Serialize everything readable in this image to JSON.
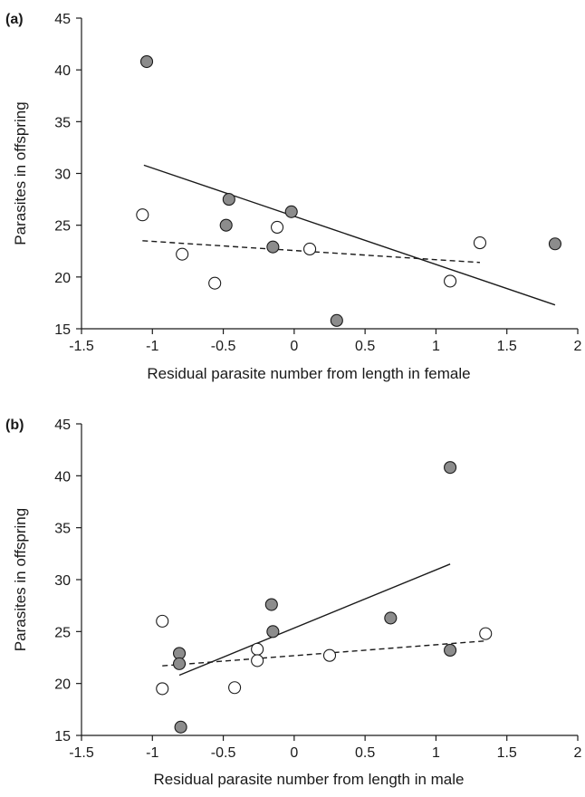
{
  "chart_data": [
    {
      "type": "scatter",
      "panel_label": "(a)",
      "xlabel": "Residual parasite number from length in female",
      "ylabel": "Parasites in offspring",
      "xlim": [
        -1.5,
        2
      ],
      "ylim": [
        15,
        45
      ],
      "xticks": [
        -1.5,
        -1,
        -0.5,
        0,
        0.5,
        1,
        1.5,
        2
      ],
      "yticks": [
        15,
        20,
        25,
        30,
        35,
        40,
        45
      ],
      "x_tick_labels": [
        "-1.5",
        "-1",
        "-0.5",
        "0",
        "0.5",
        "1",
        "1.5",
        "2"
      ],
      "y_tick_labels": [
        "15",
        "20",
        "25",
        "30",
        "35",
        "40",
        "45"
      ],
      "grid": false,
      "series": [
        {
          "marker": "filled-circle",
          "color": "#8c8c8c",
          "points": [
            [
              -1.04,
              40.8
            ],
            [
              -0.46,
              27.5
            ],
            [
              -0.48,
              25.0
            ],
            [
              -0.02,
              26.3
            ],
            [
              -0.15,
              22.9
            ],
            [
              0.3,
              15.8
            ],
            [
              1.84,
              23.2
            ]
          ],
          "fit": {
            "style": "solid",
            "x": [
              -1.06,
              1.84
            ],
            "y": [
              30.8,
              17.3
            ]
          }
        },
        {
          "marker": "open-circle",
          "color": "#ffffff",
          "points": [
            [
              -1.07,
              26.0
            ],
            [
              -0.79,
              22.2
            ],
            [
              -0.56,
              19.4
            ],
            [
              -0.12,
              24.8
            ],
            [
              0.11,
              22.7
            ],
            [
              1.1,
              19.6
            ],
            [
              1.31,
              23.3
            ]
          ],
          "fit": {
            "style": "dashed",
            "x": [
              -1.07,
              1.31
            ],
            "y": [
              23.5,
              21.4
            ]
          }
        }
      ]
    },
    {
      "type": "scatter",
      "panel_label": "(b)",
      "xlabel": "Residual parasite number from length in male",
      "ylabel": "Parasites in offspring",
      "xlim": [
        -1.5,
        2
      ],
      "ylim": [
        15,
        45
      ],
      "xticks": [
        -1.5,
        -1,
        -0.5,
        0,
        0.5,
        1,
        1.5,
        2
      ],
      "yticks": [
        15,
        20,
        25,
        30,
        35,
        40,
        45
      ],
      "x_tick_labels": [
        "-1.5",
        "-1",
        "-0.5",
        "0",
        "0.5",
        "1",
        "1.5",
        "2"
      ],
      "y_tick_labels": [
        "15",
        "20",
        "25",
        "30",
        "35",
        "40",
        "45"
      ],
      "grid": false,
      "series": [
        {
          "marker": "filled-circle",
          "color": "#8c8c8c",
          "points": [
            [
              1.1,
              40.8
            ],
            [
              -0.16,
              27.6
            ],
            [
              -0.15,
              25.0
            ],
            [
              0.68,
              26.3
            ],
            [
              -0.81,
              22.9
            ],
            [
              -0.81,
              21.9
            ],
            [
              -0.8,
              15.8
            ],
            [
              1.1,
              23.2
            ]
          ],
          "fit": {
            "style": "solid",
            "x": [
              -0.81,
              1.1
            ],
            "y": [
              20.8,
              31.5
            ]
          }
        },
        {
          "marker": "open-circle",
          "color": "#ffffff",
          "points": [
            [
              -0.93,
              26.0
            ],
            [
              -0.93,
              19.5
            ],
            [
              -0.42,
              19.6
            ],
            [
              -0.26,
              23.3
            ],
            [
              -0.26,
              22.2
            ],
            [
              0.25,
              22.7
            ],
            [
              1.35,
              24.8
            ]
          ],
          "fit": {
            "style": "dashed",
            "x": [
              -0.93,
              1.35
            ],
            "y": [
              21.7,
              24.1
            ]
          }
        }
      ]
    }
  ]
}
